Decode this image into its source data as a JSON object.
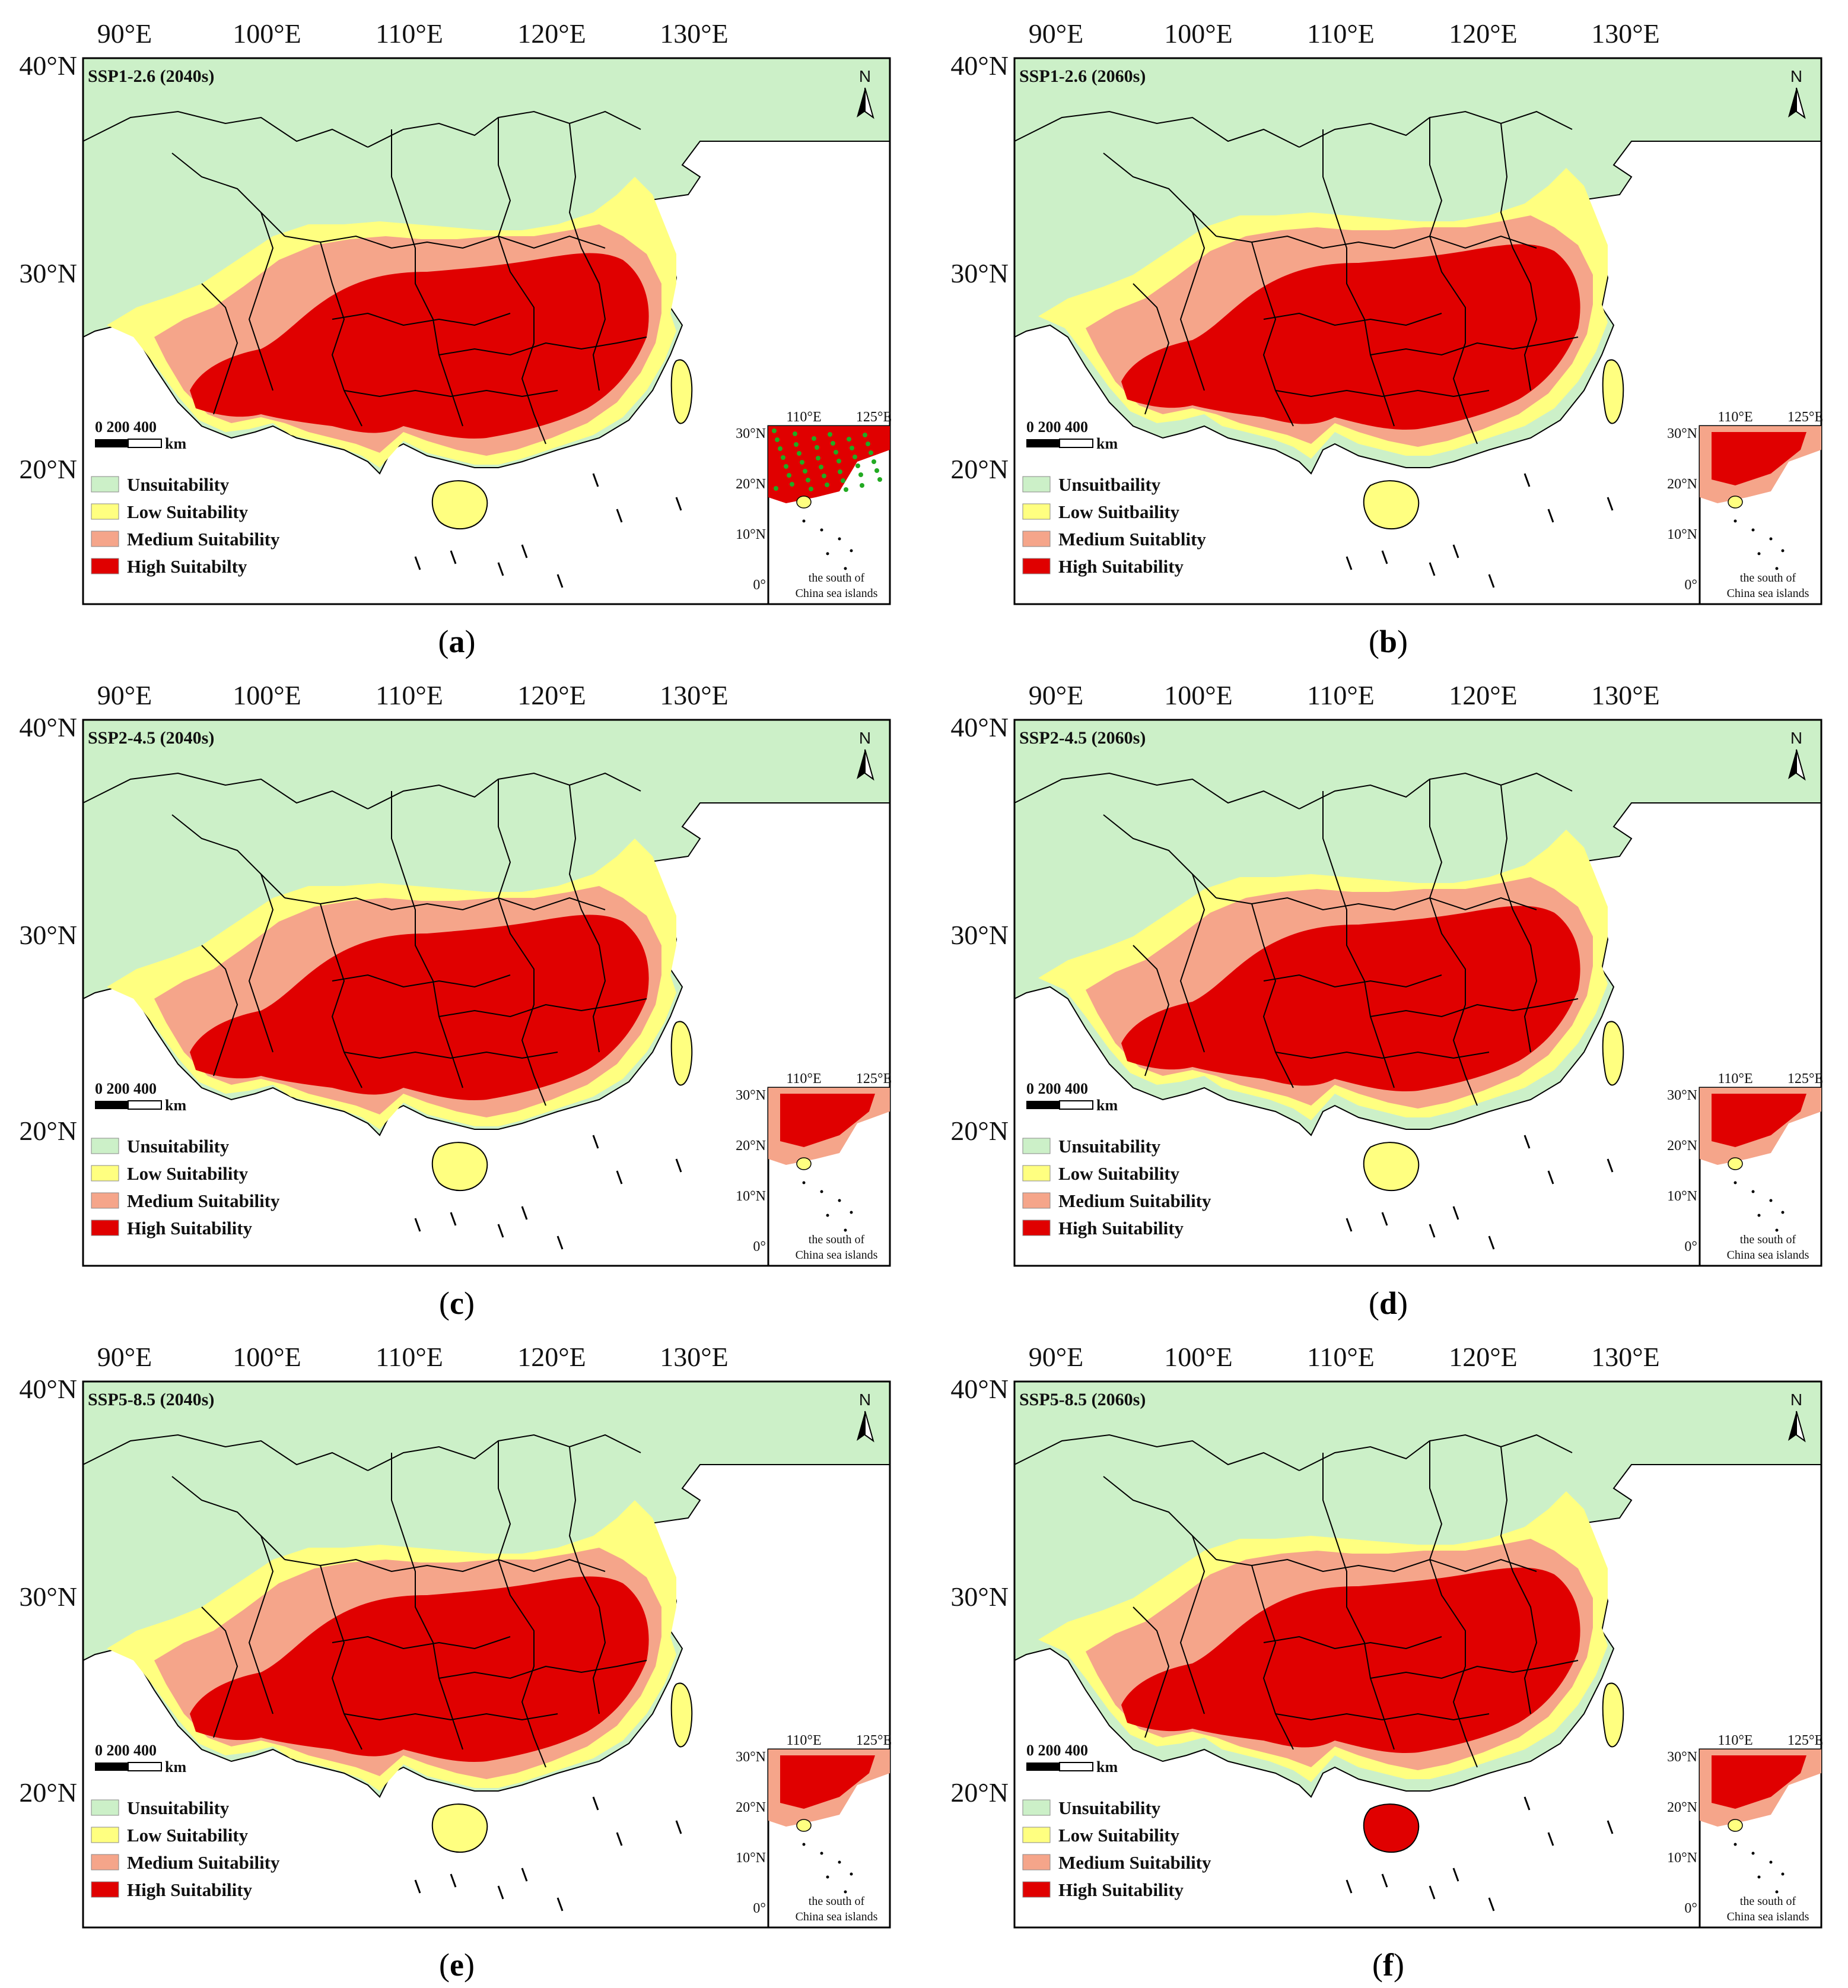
{
  "colors": {
    "unsuitability": "#ccf0c8",
    "low": "#ffff80",
    "medium": "#f5a58a",
    "high": "#e00000",
    "border": "#000000",
    "sea": "#ffffff",
    "inset_dots": "#22aa22"
  },
  "axes": {
    "lon_labels": [
      "90°E",
      "100°E",
      "110°E",
      "120°E",
      "130°E"
    ],
    "lat_labels": [
      "40°N",
      "30°N",
      "20°N"
    ]
  },
  "inset": {
    "lon_labels": [
      "110°E",
      "125°E"
    ],
    "lat_labels": [
      "30°N",
      "20°N",
      "10°N",
      "0°"
    ],
    "caption_line1": "the south of",
    "caption_line2": "China sea islands"
  },
  "scale_bar": {
    "numbers": "0   200 400",
    "unit": "km"
  },
  "north_label": "N",
  "panels": [
    {
      "id": "a",
      "caption": "a",
      "title": "SSP1-2.6 (2040s)",
      "legend": [
        "Unsuitability",
        "Low Suitability",
        "Medium Suitability",
        "High Suitabilty"
      ],
      "inset_variant": "green"
    },
    {
      "id": "b",
      "caption": "b",
      "title": "SSP1-2.6 (2060s)",
      "legend": [
        "Unsuitbaility",
        "Low Suitbaility",
        "Medium Suitablity",
        "High Suitability"
      ],
      "inset_variant": "red"
    },
    {
      "id": "c",
      "caption": "c",
      "title": "SSP2-4.5 (2040s)",
      "legend": [
        "Unsuitability",
        "Low Suitability",
        "Medium Suitability",
        "High Suitability"
      ],
      "inset_variant": "red"
    },
    {
      "id": "d",
      "caption": "d",
      "title": "SSP2-4.5 (2060s)",
      "legend": [
        "Unsuitability",
        "Low Suitability",
        "Medium Suitability",
        "High Suitability"
      ],
      "inset_variant": "red"
    },
    {
      "id": "e",
      "caption": "e",
      "title": "SSP5-8.5 (2040s)",
      "legend": [
        "Unsuitability",
        "Low Suitability",
        "Medium Suitability",
        "High Suitability"
      ],
      "inset_variant": "red"
    },
    {
      "id": "f",
      "caption": "f",
      "title": "SSP5-8.5 (2060s)",
      "legend": [
        "Unsuitability",
        "Low Suitability",
        "Medium Suitability",
        "High Suitability"
      ],
      "inset_variant": "red"
    }
  ]
}
